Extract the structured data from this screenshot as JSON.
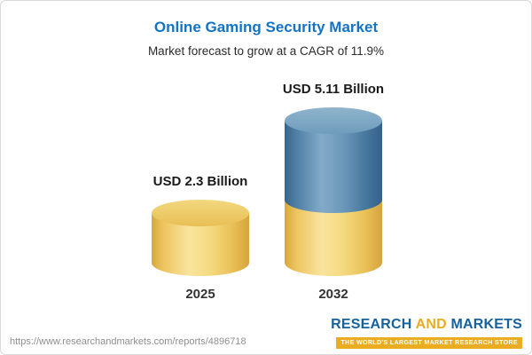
{
  "header": {
    "title": "Online Gaming Security Market",
    "subtitle": "Market forecast to grow at a CAGR of 11.9%"
  },
  "chart_data": {
    "type": "bar",
    "categories": [
      "2025",
      "2032"
    ],
    "values": [
      2.3,
      5.11
    ],
    "value_labels": [
      "USD 2.3 Billion",
      "USD 5.11 Billion"
    ],
    "unit": "USD Billion",
    "title": "Online Gaming Security Market",
    "subtitle": "Market forecast to grow at a CAGR of 11.9%",
    "cagr_percent": 11.9,
    "ylim": [
      0,
      5.11
    ],
    "legend_position": "none",
    "grid": false,
    "colors": {
      "base_bar": "#F3D77E",
      "growth_bar": "#4F81A8"
    }
  },
  "footer": {
    "url": "https://www.researchandmarkets.com/reports/4896718",
    "logo": {
      "word1": "RESEARCH",
      "word2": "AND",
      "word3": "MARKETS",
      "tagline": "THE WORLD'S LARGEST MARKET RESEARCH STORE"
    }
  },
  "colors": {
    "title_blue": "#1373C4",
    "bar_yellow": "#F3D77E",
    "bar_blue": "#4F81A8",
    "logo_blue": "#15629E",
    "logo_gold": "#EAAD21"
  }
}
